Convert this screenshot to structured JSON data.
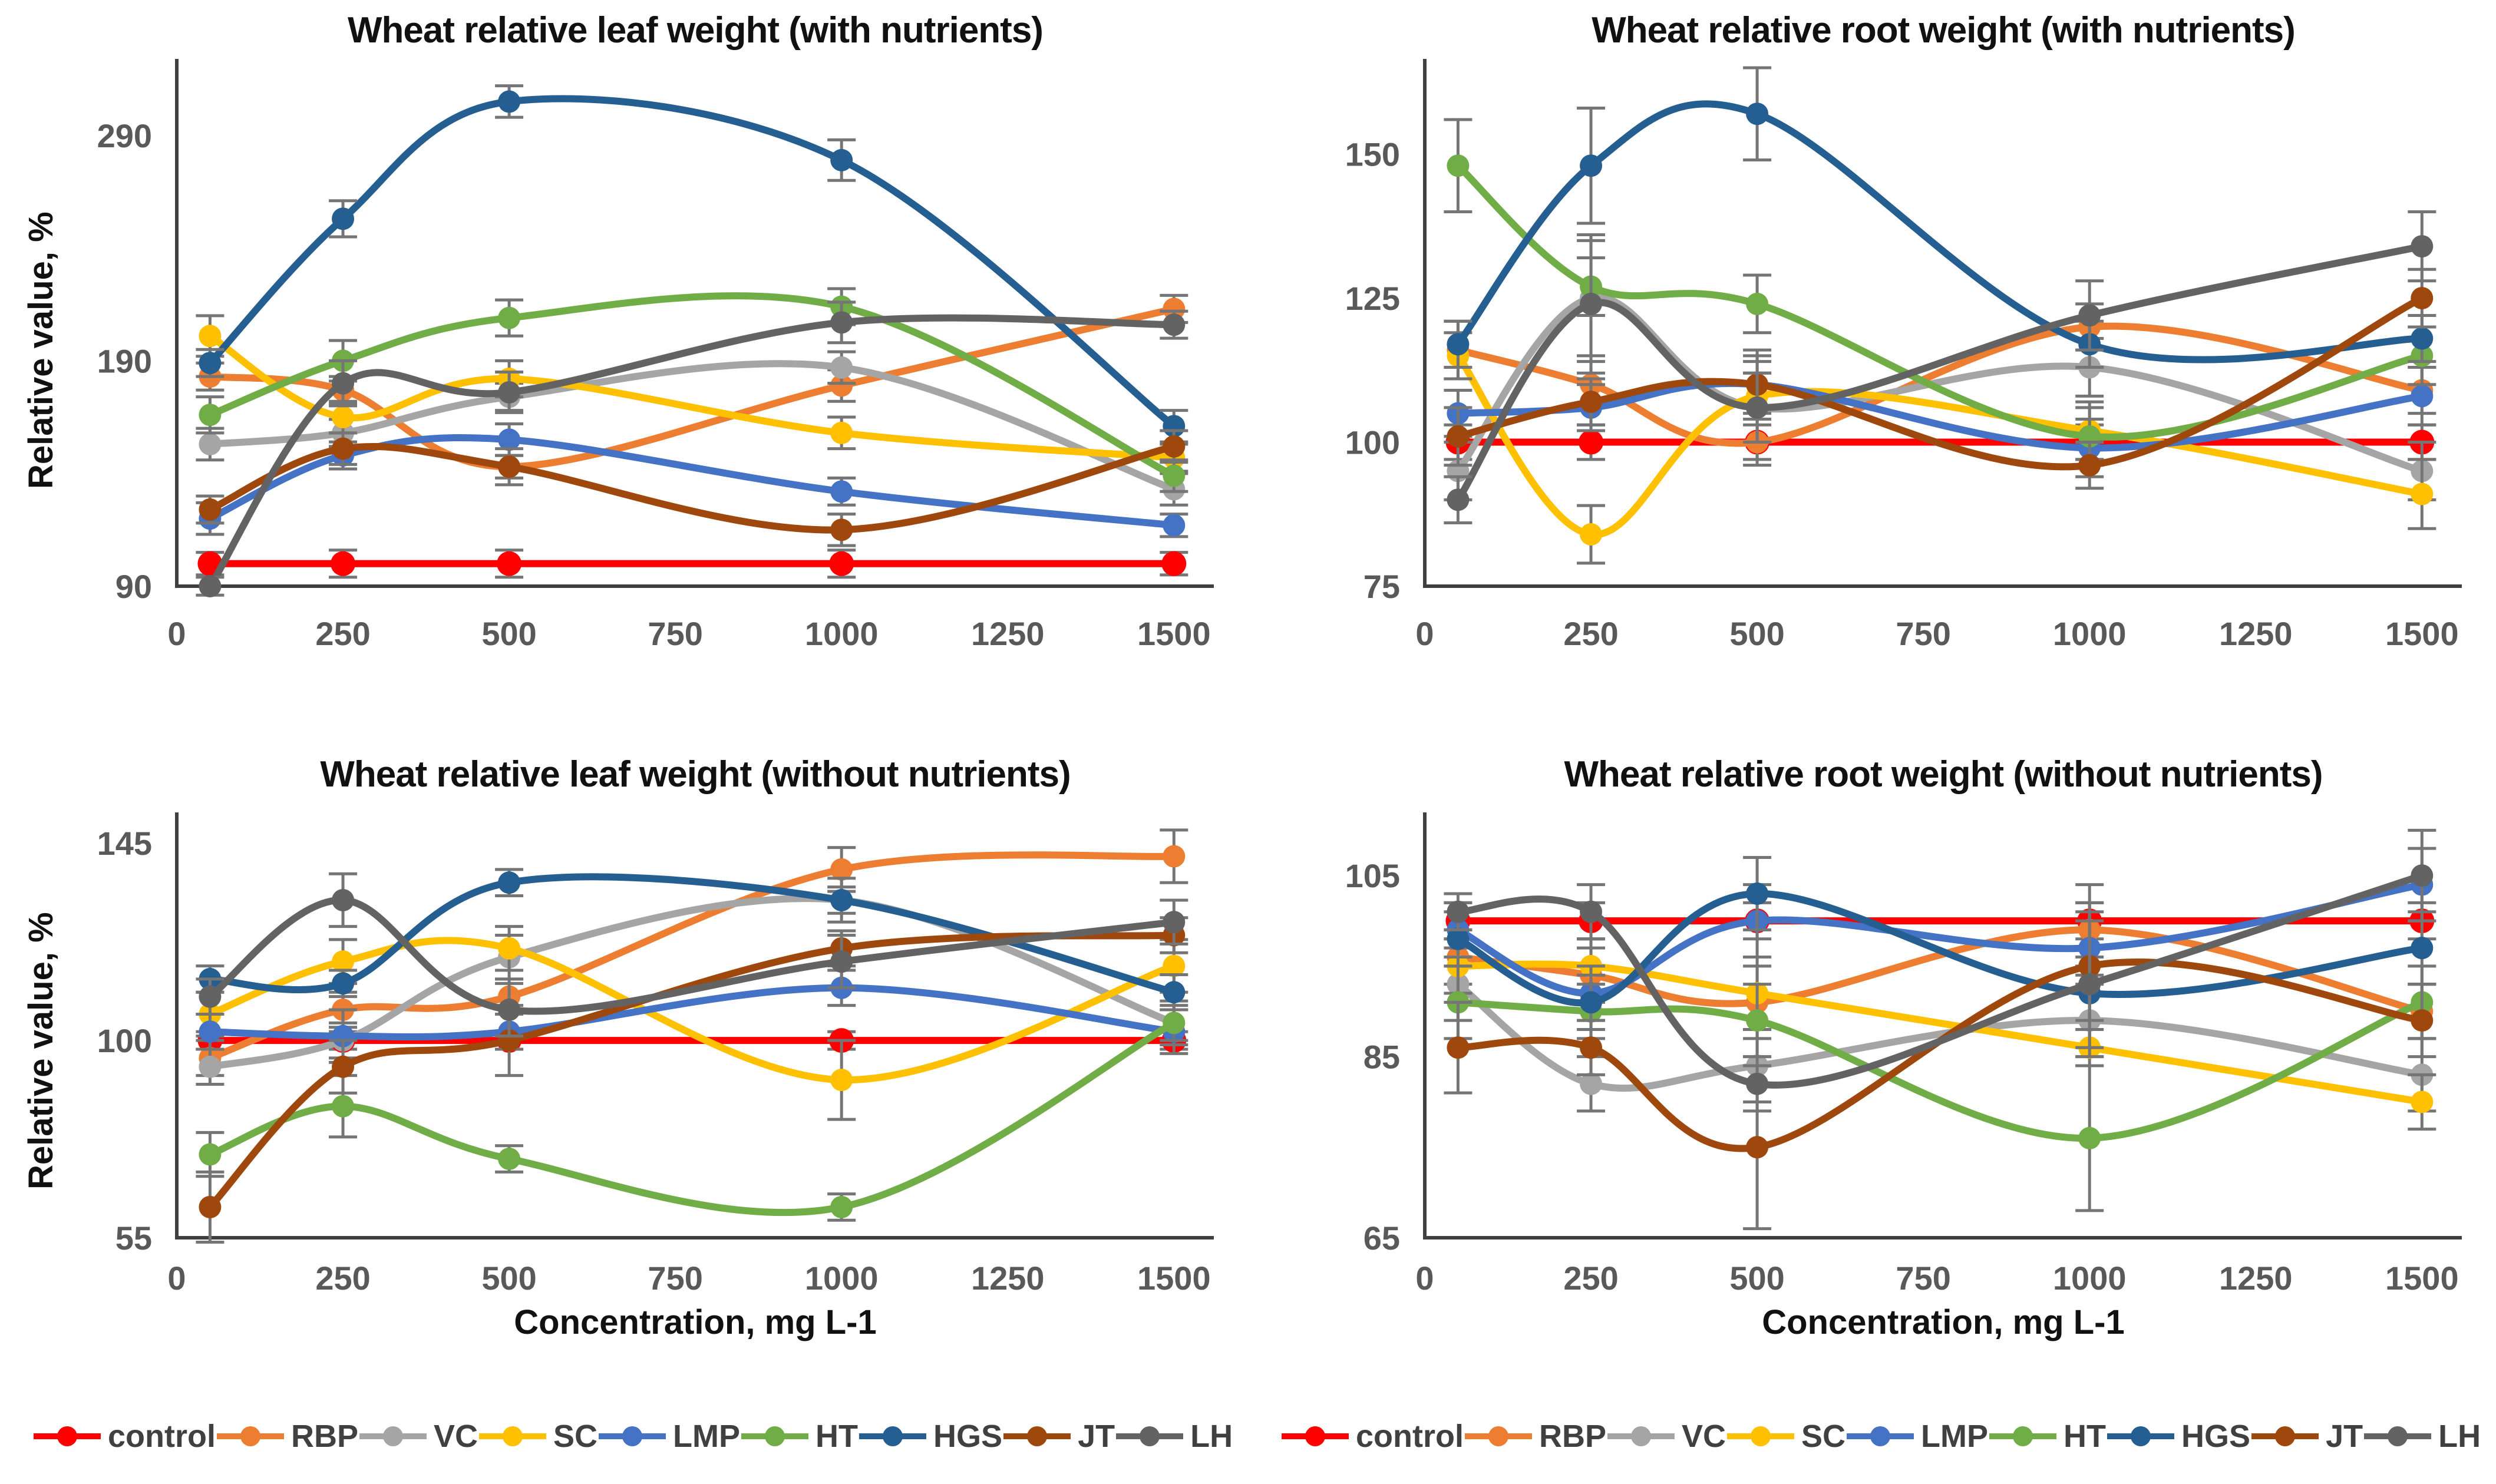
{
  "legend": {
    "items": [
      {
        "label": "control",
        "color": "#FF0000"
      },
      {
        "label": "RBP",
        "color": "#ED7D31"
      },
      {
        "label": "VC",
        "color": "#A5A5A5"
      },
      {
        "label": "SC",
        "color": "#FFC000"
      },
      {
        "label": "LMP",
        "color": "#4472C4"
      },
      {
        "label": "HT",
        "color": "#70AD47"
      },
      {
        "label": "HGS",
        "color": "#255E91"
      },
      {
        "label": "JT",
        "color": "#9E480E"
      },
      {
        "label": "LH",
        "color": "#636363"
      }
    ]
  },
  "chart_data": [
    {
      "type": "line",
      "smooth": true,
      "grid": false,
      "title": "Wheat relative leaf weight (with nutrients)",
      "xlabel": "",
      "ylabel": "Relative value, %",
      "x": [
        50,
        250,
        500,
        1000,
        1500
      ],
      "xticks": [
        0,
        250,
        500,
        750,
        1000,
        1250,
        1500
      ],
      "yticks": [
        90,
        190,
        290
      ],
      "xlim": [
        0,
        1560
      ],
      "ylim": [
        90,
        320
      ],
      "series": [
        {
          "name": "control",
          "color": "#FF0000",
          "values": [
            100,
            100,
            100,
            100,
            100
          ],
          "errors": [
            5,
            6,
            6,
            6,
            5
          ]
        },
        {
          "name": "RBP",
          "color": "#ED7D31",
          "values": [
            183,
            177,
            143,
            179,
            213
          ],
          "errors": [
            6,
            6,
            5,
            7,
            6
          ]
        },
        {
          "name": "VC",
          "color": "#A5A5A5",
          "values": [
            153,
            158,
            174,
            187,
            133
          ],
          "errors": [
            7,
            6,
            6,
            7,
            7
          ]
        },
        {
          "name": "SC",
          "color": "#FFC000",
          "values": [
            201,
            165,
            182,
            158,
            147
          ],
          "errors": [
            9,
            7,
            8,
            7,
            6
          ]
        },
        {
          "name": "LMP",
          "color": "#4472C4",
          "values": [
            120,
            148,
            155,
            132,
            117
          ],
          "errors": [
            7,
            6,
            7,
            6,
            5
          ]
        },
        {
          "name": "HT",
          "color": "#70AD47",
          "values": [
            166,
            190,
            209,
            214,
            139
          ],
          "errors": [
            8,
            9,
            8,
            8,
            7
          ]
        },
        {
          "name": "HGS",
          "color": "#255E91",
          "values": [
            189,
            253,
            305,
            279,
            161
          ],
          "errors": [
            6,
            8,
            7,
            9,
            7
          ]
        },
        {
          "name": "JT",
          "color": "#9E480E",
          "values": [
            124,
            151,
            143,
            115,
            152
          ],
          "errors": [
            6,
            7,
            8,
            7,
            7
          ]
        },
        {
          "name": "LH",
          "color": "#636363",
          "values": [
            90,
            180,
            176,
            207,
            206
          ],
          "errors": [
            4,
            10,
            9,
            9,
            6
          ]
        }
      ]
    },
    {
      "type": "line",
      "smooth": true,
      "grid": false,
      "title": "Wheat relative root weight (with nutrients)",
      "xlabel": "",
      "ylabel": "",
      "x": [
        50,
        250,
        500,
        1000,
        1500
      ],
      "xticks": [
        0,
        250,
        500,
        750,
        1000,
        1250,
        1500
      ],
      "yticks": [
        75,
        100,
        125,
        150
      ],
      "xlim": [
        0,
        1560
      ],
      "ylim": [
        75,
        165
      ],
      "series": [
        {
          "name": "control",
          "color": "#FF0000",
          "values": [
            100,
            100,
            100,
            100,
            100
          ],
          "errors": [
            3,
            3,
            3,
            3,
            3
          ]
        },
        {
          "name": "RBP",
          "color": "#ED7D31",
          "values": [
            116,
            110,
            100,
            120,
            109
          ],
          "errors": [
            5,
            4,
            4,
            4,
            4
          ]
        },
        {
          "name": "VC",
          "color": "#A5A5A5",
          "values": [
            95,
            125,
            106,
            113,
            95
          ],
          "errors": [
            5,
            10,
            6,
            5,
            5
          ]
        },
        {
          "name": "SC",
          "color": "#FFC000",
          "values": [
            115,
            84,
            108,
            102,
            91
          ],
          "errors": [
            4,
            5,
            8,
            5,
            6
          ]
        },
        {
          "name": "LMP",
          "color": "#4472C4",
          "values": [
            105,
            106,
            110,
            99,
            108
          ],
          "errors": [
            4,
            4,
            5,
            5,
            5
          ]
        },
        {
          "name": "HT",
          "color": "#70AD47",
          "values": [
            148,
            127,
            124,
            101,
            115
          ],
          "errors": [
            8,
            5,
            5,
            5,
            5
          ]
        },
        {
          "name": "HGS",
          "color": "#255E91",
          "values": [
            117,
            148,
            157,
            117,
            118
          ],
          "errors": [
            4,
            10,
            8,
            4,
            4
          ]
        },
        {
          "name": "JT",
          "color": "#9E480E",
          "values": [
            101,
            107,
            110,
            96,
            125
          ],
          "errors": [
            5,
            4,
            4,
            4,
            5
          ]
        },
        {
          "name": "LH",
          "color": "#636363",
          "values": [
            90,
            124,
            106,
            122,
            134
          ],
          "errors": [
            4,
            12,
            6,
            6,
            6
          ]
        }
      ]
    },
    {
      "type": "line",
      "smooth": true,
      "grid": false,
      "title": "Wheat relative leaf weight (without nutrients)",
      "xlabel": "Concentration, mg L-1",
      "ylabel": "Relative value, %",
      "x": [
        50,
        250,
        500,
        1000,
        1500
      ],
      "xticks": [
        0,
        250,
        500,
        750,
        1000,
        1250,
        1500
      ],
      "yticks": [
        55,
        100,
        145
      ],
      "xlim": [
        0,
        1560
      ],
      "ylim": [
        55,
        150
      ],
      "series": [
        {
          "name": "control",
          "color": "#FF0000",
          "values": [
            100,
            100,
            100,
            100,
            100
          ],
          "errors": [
            2,
            2,
            2,
            2,
            2
          ]
        },
        {
          "name": "RBP",
          "color": "#ED7D31",
          "values": [
            96,
            107,
            110,
            139,
            142
          ],
          "errors": [
            4,
            4,
            4,
            5,
            6
          ]
        },
        {
          "name": "VC",
          "color": "#A5A5A5",
          "values": [
            94,
            100,
            119,
            132,
            104
          ],
          "errors": [
            4,
            4,
            5,
            5,
            5
          ]
        },
        {
          "name": "SC",
          "color": "#FFC000",
          "values": [
            106,
            118,
            121,
            91,
            117
          ],
          "errors": [
            5,
            5,
            5,
            9,
            6
          ]
        },
        {
          "name": "LMP",
          "color": "#4472C4",
          "values": [
            102,
            101,
            102,
            112,
            102
          ],
          "errors": [
            4,
            6,
            4,
            4,
            5
          ]
        },
        {
          "name": "HT",
          "color": "#70AD47",
          "values": [
            74,
            85,
            73,
            62,
            104
          ],
          "errors": [
            5,
            7,
            3,
            3,
            4
          ]
        },
        {
          "name": "HGS",
          "color": "#255E91",
          "values": [
            114,
            113,
            136,
            132,
            111
          ],
          "errors": [
            3,
            3,
            3,
            3,
            4
          ]
        },
        {
          "name": "JT",
          "color": "#9E480E",
          "values": [
            62,
            94,
            100,
            121,
            124
          ],
          "errors": [
            8,
            6,
            8,
            4,
            4
          ]
        },
        {
          "name": "LH",
          "color": "#636363",
          "values": [
            110,
            132,
            107,
            118,
            127
          ],
          "errors": [
            4,
            6,
            6,
            6,
            5
          ]
        }
      ]
    },
    {
      "type": "line",
      "smooth": true,
      "grid": false,
      "title": "Wheat relative root weight (without nutrients)",
      "xlabel": "Concentration, mg L-1",
      "ylabel": "",
      "x": [
        50,
        250,
        500,
        1000,
        1500
      ],
      "xticks": [
        0,
        250,
        500,
        750,
        1000,
        1250,
        1500
      ],
      "yticks": [
        65,
        85,
        105
      ],
      "xlim": [
        0,
        1560
      ],
      "ylim": [
        65,
        111
      ],
      "series": [
        {
          "name": "control",
          "color": "#FF0000",
          "values": [
            100,
            100,
            100,
            100,
            100
          ],
          "errors": [
            2,
            2,
            2,
            2,
            2
          ]
        },
        {
          "name": "RBP",
          "color": "#ED7D31",
          "values": [
            96,
            94,
            91,
            99,
            90
          ],
          "errors": [
            3,
            3,
            4,
            3,
            3
          ]
        },
        {
          "name": "VC",
          "color": "#A5A5A5",
          "values": [
            93,
            82,
            84,
            89,
            83
          ],
          "errors": [
            4,
            3,
            4,
            4,
            4
          ]
        },
        {
          "name": "SC",
          "color": "#FFC000",
          "values": [
            95,
            95,
            92,
            86,
            80
          ],
          "errors": [
            3,
            3,
            4,
            2,
            3
          ]
        },
        {
          "name": "LMP",
          "color": "#4472C4",
          "values": [
            99,
            92,
            100,
            97,
            104
          ],
          "errors": [
            3,
            3,
            4,
            3,
            4
          ]
        },
        {
          "name": "HT",
          "color": "#70AD47",
          "values": [
            91,
            90,
            89,
            76,
            91
          ],
          "errors": [
            4,
            3,
            4,
            8,
            4
          ]
        },
        {
          "name": "HGS",
          "color": "#255E91",
          "values": [
            98,
            91,
            103,
            92,
            97
          ],
          "errors": [
            3,
            3,
            4,
            3,
            4
          ]
        },
        {
          "name": "JT",
          "color": "#9E480E",
          "values": [
            86,
            86,
            75,
            95,
            89
          ],
          "errors": [
            5,
            3,
            9,
            9,
            4
          ]
        },
        {
          "name": "LH",
          "color": "#636363",
          "values": [
            101,
            101,
            82,
            93,
            105
          ],
          "errors": [
            2,
            3,
            3,
            8,
            5
          ]
        }
      ]
    }
  ]
}
